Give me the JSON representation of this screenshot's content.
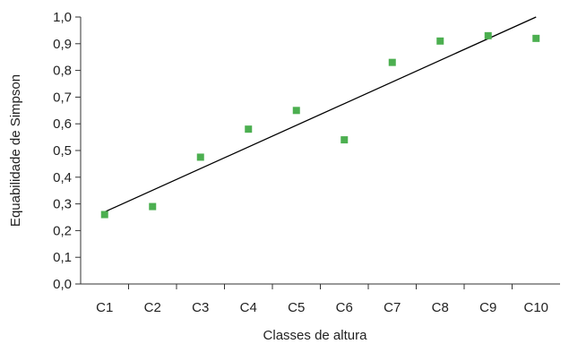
{
  "chart_data": {
    "type": "scatter",
    "title": "",
    "xlabel": "Classes de altura",
    "ylabel": "Equabilidade de Simpson",
    "categories": [
      "C1",
      "C2",
      "C3",
      "C4",
      "C5",
      "C6",
      "C7",
      "C8",
      "C9",
      "C10"
    ],
    "ylim": [
      0,
      1
    ],
    "yticks": [
      "0,0",
      "0,1",
      "0,2",
      "0,3",
      "0,4",
      "0,5",
      "0,6",
      "0,7",
      "0,8",
      "0,9",
      "1,0"
    ],
    "grid": false,
    "legend": "none",
    "series": [
      {
        "values": [
          0.26,
          0.29,
          0.475,
          0.58,
          0.65,
          0.54,
          0.83,
          0.91,
          0.93,
          0.92
        ],
        "marker": "square",
        "color": "#4caf50"
      }
    ],
    "trendline": {
      "type": "linear",
      "start": 0.27,
      "end": 1.0,
      "color": "#000000"
    }
  }
}
